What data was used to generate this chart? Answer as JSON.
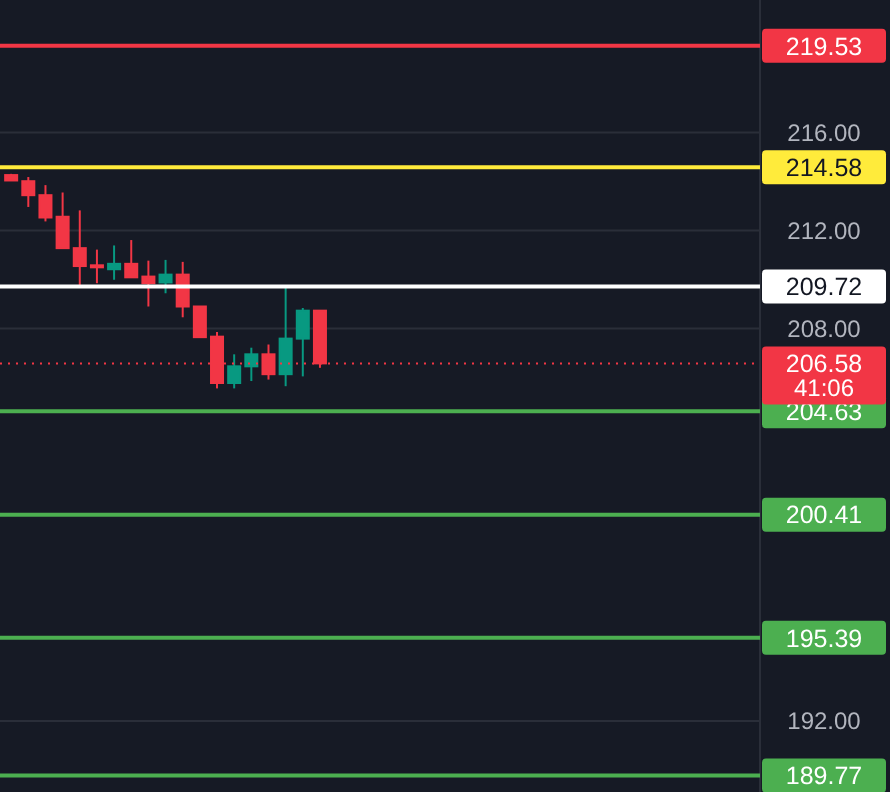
{
  "chart_data": {
    "type": "candlestick",
    "categories": [
      null,
      null,
      null,
      null,
      null,
      null,
      null,
      null,
      null,
      null,
      null,
      null,
      null,
      null,
      null,
      null,
      null,
      null,
      null,
      null,
      null,
      null,
      null,
      null,
      null,
      null,
      null,
      null,
      null,
      null,
      null,
      null,
      null,
      null,
      null,
      null,
      null,
      null,
      null,
      null,
      null,
      null,
      null,
      null
    ],
    "ohlc": [
      [
        214.26,
        214.31,
        214.04,
        214.04
      ],
      [
        214.01,
        214.18,
        212.96,
        213.44
      ],
      [
        213.44,
        213.85,
        212.37,
        212.53
      ],
      [
        212.56,
        213.55,
        211.28,
        211.28
      ],
      [
        211.28,
        212.82,
        209.66,
        210.55
      ],
      [
        210.58,
        211.22,
        209.85,
        210.52
      ],
      [
        210.42,
        211.39,
        209.99,
        210.64
      ],
      [
        210.64,
        211.61,
        210.09,
        210.09
      ],
      [
        210.12,
        210.77,
        208.9,
        209.85
      ],
      [
        209.88,
        210.8,
        209.44,
        210.2
      ],
      [
        210.2,
        210.72,
        208.46,
        208.9
      ],
      [
        208.9,
        208.9,
        207.65,
        207.65
      ],
      [
        207.67,
        207.86,
        205.56,
        205.78
      ],
      [
        205.78,
        206.95,
        205.56,
        206.46
      ],
      [
        206.46,
        207.22,
        205.86,
        206.95
      ],
      [
        206.95,
        207.35,
        205.92,
        206.14
      ],
      [
        206.14,
        209.66,
        205.65,
        207.59
      ],
      [
        207.59,
        208.84,
        206.05,
        208.73
      ],
      [
        208.73,
        208.73,
        206.4,
        206.58
      ],
      null,
      null,
      null,
      null,
      null,
      null,
      null,
      null,
      null,
      null,
      null,
      null,
      null,
      null,
      null,
      null,
      null,
      null,
      null,
      null,
      null,
      null,
      null,
      null,
      null
    ],
    "ylim": [
      189.1,
      221.4
    ],
    "yticks": [
      {
        "value": 216,
        "label": "216.00"
      },
      {
        "value": 212,
        "label": "212.00"
      },
      {
        "value": 208,
        "label": "208.00"
      },
      {
        "value": 192,
        "label": "192.00"
      }
    ],
    "grid": "y",
    "ref_lines": [
      {
        "axis": "y",
        "value": 219.53,
        "label": "219.53",
        "color": "#f23645"
      },
      {
        "axis": "y",
        "value": 214.58,
        "label": "214.58",
        "color": "#ffeb3b"
      },
      {
        "axis": "y",
        "value": 209.72,
        "label": "209.72",
        "color": "#ffffff"
      },
      {
        "axis": "y",
        "value": 206.58,
        "label": "206.58",
        "color": "#f23645",
        "line_style": "dotted"
      },
      {
        "axis": "y",
        "value": 204.63,
        "label": "204.63",
        "color": "#4caf50"
      },
      {
        "axis": "y",
        "value": 200.41,
        "label": "200.41",
        "color": "#4caf50"
      },
      {
        "axis": "y",
        "value": 195.39,
        "label": "195.39",
        "color": "#4caf50"
      },
      {
        "axis": "y",
        "value": 189.77,
        "label": "189.77",
        "color": "#4caf50"
      }
    ],
    "annotations": [
      "41:06"
    ]
  }
}
